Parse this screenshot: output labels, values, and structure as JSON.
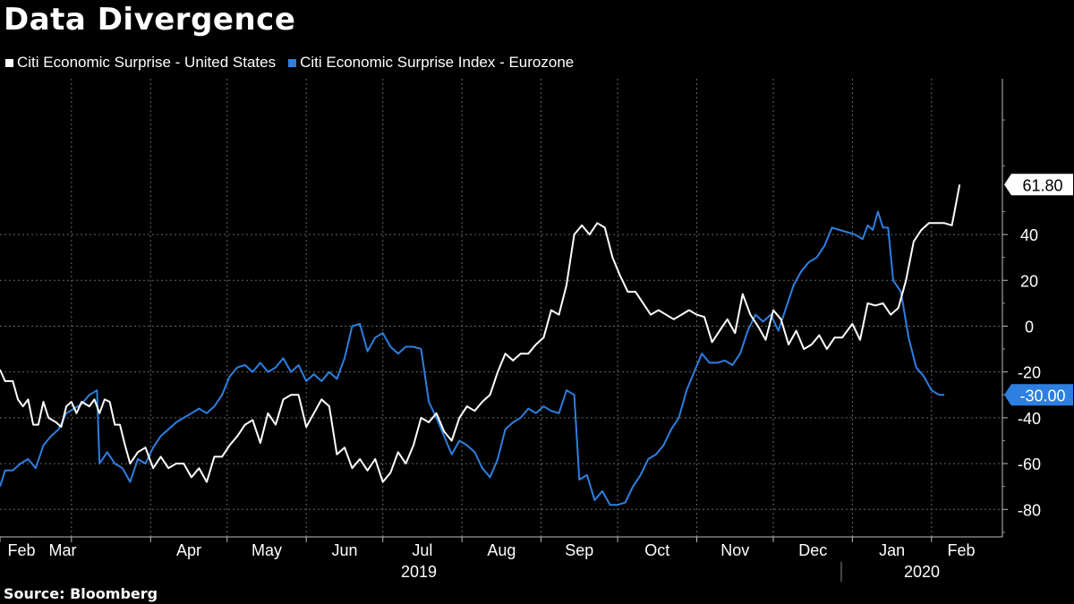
{
  "title": "Data Divergence",
  "source": "Source: Bloomberg",
  "colors": {
    "us": "#ffffff",
    "eu": "#2e7fe0",
    "background": "#000000",
    "grid": "#666666"
  },
  "chart_data": {
    "type": "line",
    "title": "Data Divergence",
    "xlabel": "",
    "ylabel": "",
    "ylim": [
      -92,
      108
    ],
    "y_ticks": [
      40,
      20,
      0,
      -20,
      -40,
      -60,
      -80
    ],
    "x_month_labels": [
      "Feb",
      "Mar",
      "Apr",
      "May",
      "Jun",
      "Jul",
      "Aug",
      "Sep",
      "Oct",
      "Nov",
      "Dec",
      "Jan",
      "Feb"
    ],
    "x_year_labels": [
      "2019",
      "2020"
    ],
    "x_range": [
      "2019-02-01",
      "2020-02-20"
    ],
    "grid": true,
    "legend": "top-left",
    "series": [
      {
        "name": "Citi Economic Surprise - United States",
        "color": "#ffffff",
        "last_value_label": "61.80",
        "points": [
          [
            "2019-02-01",
            -19
          ],
          [
            "2019-02-03",
            -24
          ],
          [
            "2019-02-06",
            -24
          ],
          [
            "2019-02-08",
            -32
          ],
          [
            "2019-02-10",
            -35
          ],
          [
            "2019-02-12",
            -32
          ],
          [
            "2019-02-14",
            -43
          ],
          [
            "2019-02-16",
            -43
          ],
          [
            "2019-02-18",
            -33
          ],
          [
            "2019-02-20",
            -40
          ],
          [
            "2019-02-23",
            -42
          ],
          [
            "2019-02-25",
            -44
          ],
          [
            "2019-02-27",
            -35
          ],
          [
            "2019-03-01",
            -33
          ],
          [
            "2019-03-03",
            -38
          ],
          [
            "2019-03-05",
            -33
          ],
          [
            "2019-03-08",
            -35
          ],
          [
            "2019-03-10",
            -32
          ],
          [
            "2019-03-12",
            -38
          ],
          [
            "2019-03-14",
            -32
          ],
          [
            "2019-03-16",
            -33
          ],
          [
            "2019-03-18",
            -43
          ],
          [
            "2019-03-20",
            -43
          ],
          [
            "2019-03-22",
            -52
          ],
          [
            "2019-03-24",
            -60
          ],
          [
            "2019-03-27",
            -55
          ],
          [
            "2019-03-30",
            -53
          ],
          [
            "2019-04-02",
            -62
          ],
          [
            "2019-04-05",
            -57
          ],
          [
            "2019-04-08",
            -62
          ],
          [
            "2019-04-11",
            -60
          ],
          [
            "2019-04-14",
            -60
          ],
          [
            "2019-04-17",
            -66
          ],
          [
            "2019-04-20",
            -62
          ],
          [
            "2019-04-23",
            -68
          ],
          [
            "2019-04-26",
            -57
          ],
          [
            "2019-04-29",
            -57
          ],
          [
            "2019-05-02",
            -52
          ],
          [
            "2019-05-05",
            -48
          ],
          [
            "2019-05-08",
            -43
          ],
          [
            "2019-05-11",
            -41
          ],
          [
            "2019-05-14",
            -51
          ],
          [
            "2019-05-17",
            -38
          ],
          [
            "2019-05-20",
            -43
          ],
          [
            "2019-05-23",
            -32
          ],
          [
            "2019-05-26",
            -30
          ],
          [
            "2019-05-29",
            -30
          ],
          [
            "2019-06-01",
            -44
          ],
          [
            "2019-06-04",
            -38
          ],
          [
            "2019-06-07",
            -32
          ],
          [
            "2019-06-10",
            -35
          ],
          [
            "2019-06-13",
            -56
          ],
          [
            "2019-06-16",
            -53
          ],
          [
            "2019-06-19",
            -62
          ],
          [
            "2019-06-22",
            -58
          ],
          [
            "2019-06-25",
            -63
          ],
          [
            "2019-06-28",
            -58
          ],
          [
            "2019-07-01",
            -68
          ],
          [
            "2019-07-04",
            -64
          ],
          [
            "2019-07-07",
            -55
          ],
          [
            "2019-07-10",
            -60
          ],
          [
            "2019-07-13",
            -52
          ],
          [
            "2019-07-16",
            -40
          ],
          [
            "2019-07-19",
            -42
          ],
          [
            "2019-07-22",
            -38
          ],
          [
            "2019-07-25",
            -46
          ],
          [
            "2019-07-28",
            -50
          ],
          [
            "2019-07-31",
            -40
          ],
          [
            "2019-08-03",
            -35
          ],
          [
            "2019-08-06",
            -37
          ],
          [
            "2019-08-09",
            -33
          ],
          [
            "2019-08-12",
            -30
          ],
          [
            "2019-08-15",
            -20
          ],
          [
            "2019-08-18",
            -12
          ],
          [
            "2019-08-21",
            -15
          ],
          [
            "2019-08-24",
            -12
          ],
          [
            "2019-08-27",
            -12
          ],
          [
            "2019-08-30",
            -8
          ],
          [
            "2019-09-02",
            -5
          ],
          [
            "2019-09-05",
            7
          ],
          [
            "2019-09-08",
            5
          ],
          [
            "2019-09-11",
            18
          ],
          [
            "2019-09-14",
            40
          ],
          [
            "2019-09-17",
            44
          ],
          [
            "2019-09-20",
            40
          ],
          [
            "2019-09-23",
            45
          ],
          [
            "2019-09-26",
            43
          ],
          [
            "2019-09-29",
            30
          ],
          [
            "2019-10-02",
            22
          ],
          [
            "2019-10-05",
            15
          ],
          [
            "2019-10-08",
            15
          ],
          [
            "2019-10-11",
            10
          ],
          [
            "2019-10-14",
            5
          ],
          [
            "2019-10-17",
            7
          ],
          [
            "2019-10-20",
            5
          ],
          [
            "2019-10-23",
            3
          ],
          [
            "2019-10-26",
            5
          ],
          [
            "2019-10-29",
            7
          ],
          [
            "2019-11-01",
            5
          ],
          [
            "2019-11-04",
            4
          ],
          [
            "2019-11-07",
            -7
          ],
          [
            "2019-11-10",
            -2
          ],
          [
            "2019-11-13",
            3
          ],
          [
            "2019-11-16",
            -3
          ],
          [
            "2019-11-19",
            14
          ],
          [
            "2019-11-22",
            5
          ],
          [
            "2019-11-25",
            0
          ],
          [
            "2019-11-28",
            -6
          ],
          [
            "2019-12-01",
            7
          ],
          [
            "2019-12-04",
            3
          ],
          [
            "2019-12-07",
            -8
          ],
          [
            "2019-12-10",
            -2
          ],
          [
            "2019-12-13",
            -10
          ],
          [
            "2019-12-16",
            -8
          ],
          [
            "2019-12-19",
            -4
          ],
          [
            "2019-12-22",
            -10
          ],
          [
            "2019-12-25",
            -5
          ],
          [
            "2019-12-28",
            -5
          ],
          [
            "2020-01-01",
            1
          ],
          [
            "2020-01-04",
            -6
          ],
          [
            "2020-01-07",
            10
          ],
          [
            "2020-01-10",
            9
          ],
          [
            "2020-01-13",
            10
          ],
          [
            "2020-01-16",
            5
          ],
          [
            "2020-01-19",
            8
          ],
          [
            "2020-01-22",
            20
          ],
          [
            "2020-01-25",
            37
          ],
          [
            "2020-01-28",
            42
          ],
          [
            "2020-01-31",
            45
          ],
          [
            "2020-02-03",
            45
          ],
          [
            "2020-02-06",
            45
          ],
          [
            "2020-02-09",
            44
          ],
          [
            "2020-02-12",
            61.8
          ]
        ]
      },
      {
        "name": "Citi Economic Surprise Index - Eurozone",
        "color": "#2e7fe0",
        "last_value_label": "-30.00",
        "points": [
          [
            "2019-02-01",
            -70
          ],
          [
            "2019-02-03",
            -63
          ],
          [
            "2019-02-06",
            -63
          ],
          [
            "2019-02-09",
            -60
          ],
          [
            "2019-02-12",
            -58
          ],
          [
            "2019-02-15",
            -62
          ],
          [
            "2019-02-18",
            -52
          ],
          [
            "2019-02-21",
            -48
          ],
          [
            "2019-02-24",
            -45
          ],
          [
            "2019-02-27",
            -38
          ],
          [
            "2019-03-02",
            -36
          ],
          [
            "2019-03-05",
            -34
          ],
          [
            "2019-03-08",
            -30
          ],
          [
            "2019-03-11",
            -28
          ],
          [
            "2019-03-12",
            -60
          ],
          [
            "2019-03-15",
            -55
          ],
          [
            "2019-03-18",
            -60
          ],
          [
            "2019-03-21",
            -62
          ],
          [
            "2019-03-24",
            -68
          ],
          [
            "2019-03-27",
            -58
          ],
          [
            "2019-03-30",
            -60
          ],
          [
            "2019-04-02",
            -53
          ],
          [
            "2019-04-05",
            -48
          ],
          [
            "2019-04-08",
            -45
          ],
          [
            "2019-04-11",
            -42
          ],
          [
            "2019-04-14",
            -40
          ],
          [
            "2019-04-17",
            -38
          ],
          [
            "2019-04-20",
            -36
          ],
          [
            "2019-04-23",
            -38
          ],
          [
            "2019-04-26",
            -35
          ],
          [
            "2019-04-29",
            -30
          ],
          [
            "2019-05-02",
            -22
          ],
          [
            "2019-05-05",
            -18
          ],
          [
            "2019-05-08",
            -17
          ],
          [
            "2019-05-11",
            -20
          ],
          [
            "2019-05-14",
            -16
          ],
          [
            "2019-05-17",
            -20
          ],
          [
            "2019-05-20",
            -18
          ],
          [
            "2019-05-23",
            -14
          ],
          [
            "2019-05-26",
            -20
          ],
          [
            "2019-05-29",
            -17
          ],
          [
            "2019-06-01",
            -24
          ],
          [
            "2019-06-04",
            -21
          ],
          [
            "2019-06-07",
            -24
          ],
          [
            "2019-06-10",
            -20
          ],
          [
            "2019-06-13",
            -23
          ],
          [
            "2019-06-16",
            -14
          ],
          [
            "2019-06-19",
            0
          ],
          [
            "2019-06-22",
            1
          ],
          [
            "2019-06-25",
            -11
          ],
          [
            "2019-06-28",
            -5
          ],
          [
            "2019-07-01",
            -3
          ],
          [
            "2019-07-04",
            -9
          ],
          [
            "2019-07-07",
            -12
          ],
          [
            "2019-07-10",
            -9
          ],
          [
            "2019-07-13",
            -9
          ],
          [
            "2019-07-16",
            -10
          ],
          [
            "2019-07-19",
            -33
          ],
          [
            "2019-07-22",
            -40
          ],
          [
            "2019-07-25",
            -48
          ],
          [
            "2019-07-28",
            -56
          ],
          [
            "2019-07-31",
            -50
          ],
          [
            "2019-08-03",
            -52
          ],
          [
            "2019-08-06",
            -55
          ],
          [
            "2019-08-09",
            -62
          ],
          [
            "2019-08-12",
            -66
          ],
          [
            "2019-08-15",
            -58
          ],
          [
            "2019-08-18",
            -45
          ],
          [
            "2019-08-21",
            -42
          ],
          [
            "2019-08-24",
            -40
          ],
          [
            "2019-08-27",
            -36
          ],
          [
            "2019-08-30",
            -38
          ],
          [
            "2019-09-02",
            -35
          ],
          [
            "2019-09-05",
            -37
          ],
          [
            "2019-09-08",
            -38
          ],
          [
            "2019-09-11",
            -28
          ],
          [
            "2019-09-14",
            -30
          ],
          [
            "2019-09-16",
            -67
          ],
          [
            "2019-09-19",
            -65
          ],
          [
            "2019-09-22",
            -76
          ],
          [
            "2019-09-25",
            -72
          ],
          [
            "2019-09-28",
            -78
          ],
          [
            "2019-10-01",
            -78
          ],
          [
            "2019-10-04",
            -77
          ],
          [
            "2019-10-07",
            -70
          ],
          [
            "2019-10-10",
            -65
          ],
          [
            "2019-10-13",
            -58
          ],
          [
            "2019-10-16",
            -56
          ],
          [
            "2019-10-19",
            -52
          ],
          [
            "2019-10-22",
            -45
          ],
          [
            "2019-10-25",
            -40
          ],
          [
            "2019-10-28",
            -28
          ],
          [
            "2019-10-31",
            -20
          ],
          [
            "2019-11-03",
            -12
          ],
          [
            "2019-11-06",
            -16
          ],
          [
            "2019-11-09",
            -16
          ],
          [
            "2019-11-12",
            -15
          ],
          [
            "2019-11-15",
            -17
          ],
          [
            "2019-11-18",
            -12
          ],
          [
            "2019-11-21",
            -2
          ],
          [
            "2019-11-24",
            5
          ],
          [
            "2019-11-27",
            2
          ],
          [
            "2019-11-30",
            5
          ],
          [
            "2019-12-03",
            -2
          ],
          [
            "2019-12-06",
            8
          ],
          [
            "2019-12-09",
            18
          ],
          [
            "2019-12-12",
            24
          ],
          [
            "2019-12-15",
            28
          ],
          [
            "2019-12-18",
            30
          ],
          [
            "2019-12-21",
            35
          ],
          [
            "2019-12-24",
            43
          ],
          [
            "2019-12-27",
            42
          ],
          [
            "2019-12-30",
            41
          ],
          [
            "2020-01-02",
            40
          ],
          [
            "2020-01-05",
            38
          ],
          [
            "2020-01-07",
            44
          ],
          [
            "2020-01-09",
            42
          ],
          [
            "2020-01-11",
            50
          ],
          [
            "2020-01-13",
            43
          ],
          [
            "2020-01-15",
            43
          ],
          [
            "2020-01-17",
            20
          ],
          [
            "2020-01-20",
            15
          ],
          [
            "2020-01-23",
            -5
          ],
          [
            "2020-01-26",
            -18
          ],
          [
            "2020-01-29",
            -22
          ],
          [
            "2020-02-01",
            -28
          ],
          [
            "2020-02-04",
            -30
          ],
          [
            "2020-02-06",
            -30
          ]
        ]
      }
    ]
  },
  "legend": {
    "us_label": "Citi Economic Surprise - United States",
    "eu_label": "Citi Economic Surprise Index - Eurozone"
  }
}
